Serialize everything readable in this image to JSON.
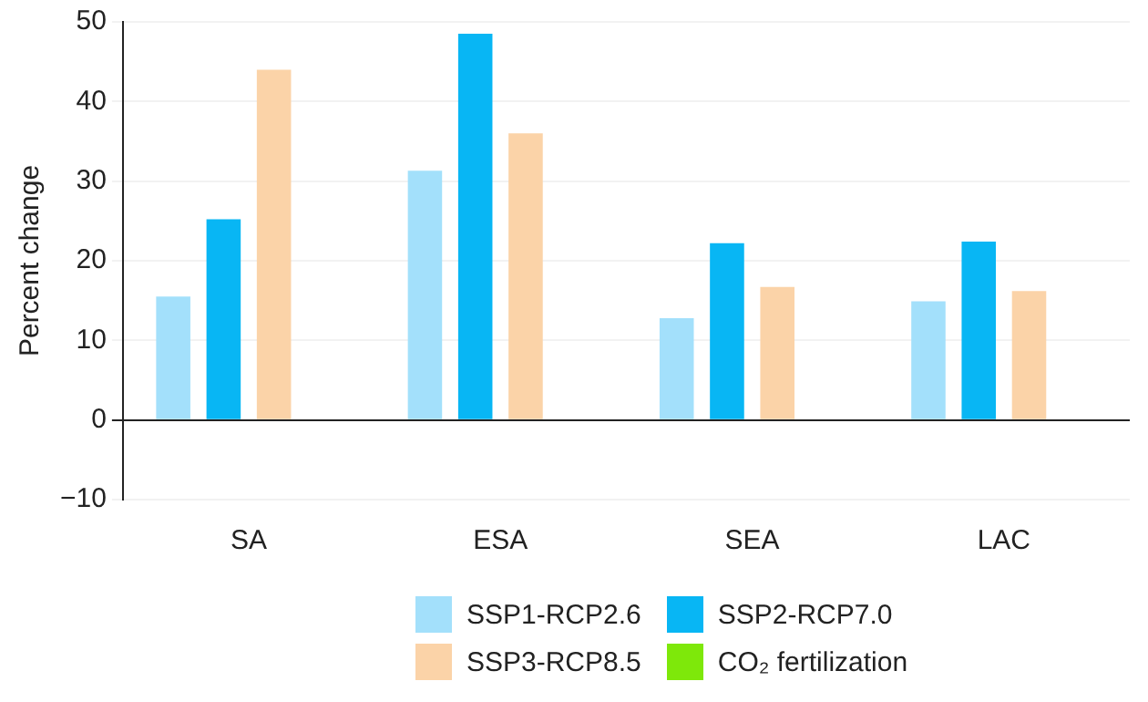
{
  "chart_data": {
    "type": "bar",
    "ylabel": "Percent change",
    "categories": [
      "SA",
      "ESA",
      "SEA",
      "LAC"
    ],
    "series": [
      {
        "name": "SSP1-RCP2.6",
        "color": "#a3e0fb",
        "values": [
          15.5,
          31.3,
          12.8,
          14.9
        ]
      },
      {
        "name": "SSP2-RCP7.0",
        "color": "#08b6f4",
        "values": [
          25.2,
          48.5,
          22.2,
          22.4
        ]
      },
      {
        "name": "SSP3-RCP8.5",
        "color": "#fbd3a8",
        "values": [
          44.0,
          36.0,
          16.7,
          16.2
        ]
      },
      {
        "name": "CO₂ fertilization",
        "color": "#7ee80a",
        "values": [
          null,
          null,
          null,
          null
        ]
      }
    ],
    "ylim": [
      -10,
      50
    ],
    "yticks": [
      -10,
      0,
      10,
      20,
      30,
      40,
      50
    ],
    "grid": "y",
    "legend": "bottom"
  }
}
